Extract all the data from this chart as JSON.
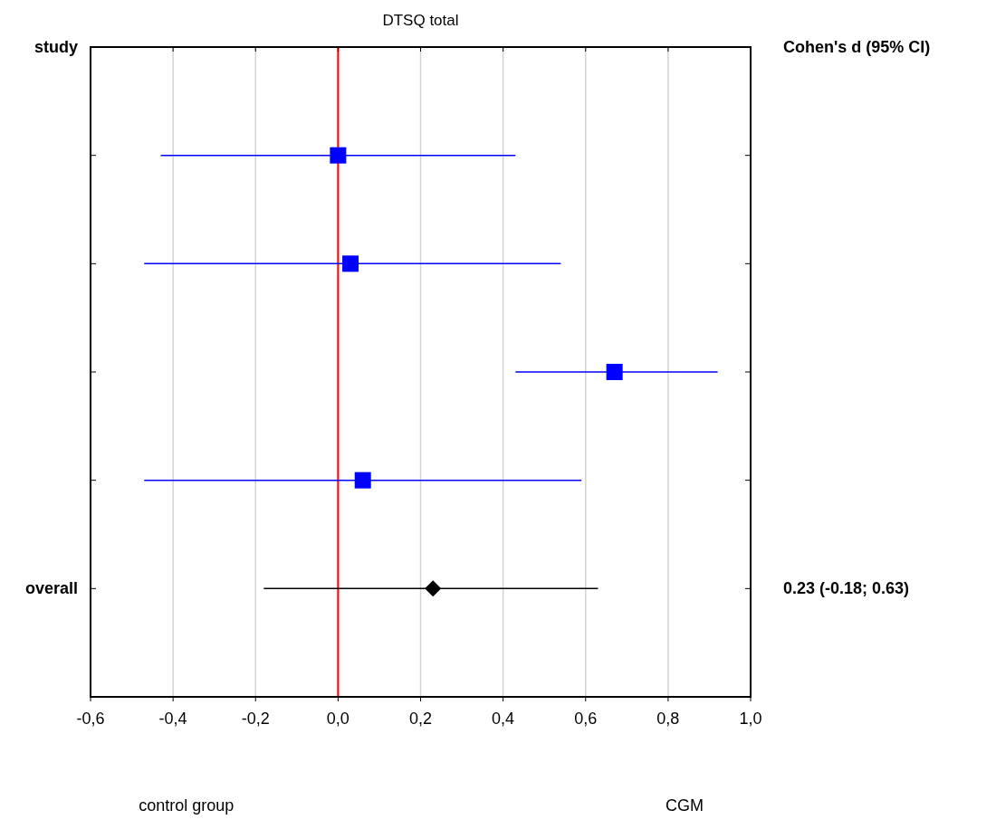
{
  "chart_data": {
    "type": "scatter",
    "orientation": "horizontal",
    "title": "DTSQ total",
    "ylabel": "study",
    "y2label": "Cohen's d (95% CI)",
    "categories": [
      null,
      null,
      null,
      null,
      "overall"
    ],
    "series": [
      {
        "color": "#0000ff",
        "marker": "square",
        "values": [
          0.0,
          0.03,
          0.67,
          0.06,
          null
        ],
        "errors": [
          [
            -0.43,
            0.43
          ],
          [
            -0.47,
            0.54
          ],
          [
            0.43,
            0.92
          ],
          [
            -0.47,
            0.59
          ],
          null
        ]
      },
      {
        "color": "#000000",
        "marker": "diamond",
        "values": [
          null,
          null,
          null,
          null,
          0.23
        ],
        "errors": [
          null,
          null,
          null,
          null,
          [
            -0.18,
            0.63
          ]
        ]
      }
    ],
    "xlim": [
      -0.6,
      1.0
    ],
    "xticks": [
      {
        "value": -0.6,
        "label": "-0,6"
      },
      {
        "value": -0.4,
        "label": "-0,4"
      },
      {
        "value": -0.2,
        "label": "-0,2"
      },
      {
        "value": 0,
        "label": "0,0"
      },
      {
        "value": 0.2,
        "label": "0,2"
      },
      {
        "value": 0.4,
        "label": "0,4"
      },
      {
        "value": 0.6,
        "label": "0,6"
      },
      {
        "value": 0.8,
        "label": "0,8"
      },
      {
        "value": 1.0,
        "label": "1,0"
      }
    ],
    "grid": "x",
    "ref_lines": [
      {
        "axis": "x",
        "value": 0,
        "color": "#ff0000"
      }
    ],
    "annotations": [
      "0.23 (-0.18; 0.63)",
      "control group",
      "CGM"
    ]
  }
}
